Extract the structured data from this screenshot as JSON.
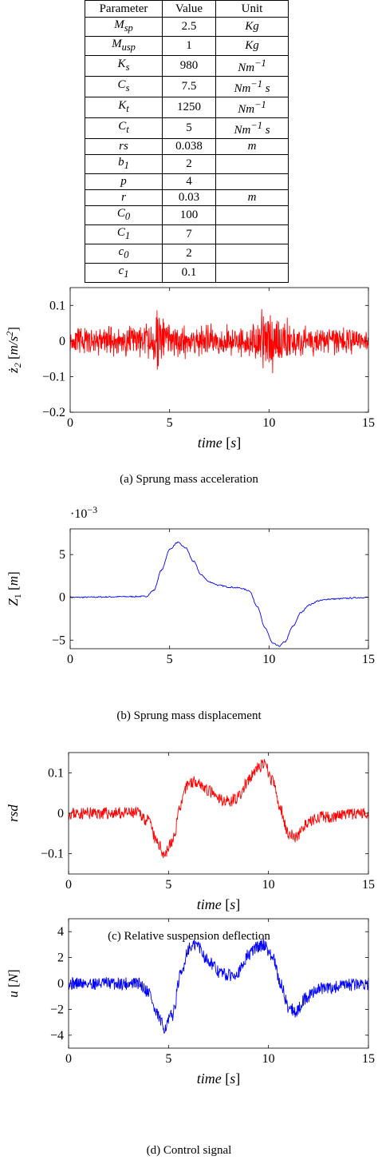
{
  "table": {
    "headers": [
      "Parameter",
      "Value",
      "Unit"
    ],
    "rows": [
      {
        "p": "M_sp",
        "v": "2.5",
        "u": "Kg"
      },
      {
        "p": "M_usp",
        "v": "1",
        "u": "Kg"
      },
      {
        "p": "K_s",
        "v": "980",
        "u": "Nm^-1"
      },
      {
        "p": "C_s",
        "v": "7.5",
        "u": "Nm^-1 s"
      },
      {
        "p": "K_t",
        "v": "1250",
        "u": "Nm^-1"
      },
      {
        "p": "C_t",
        "v": "5",
        "u": "Nm^-1 s"
      },
      {
        "p": "rs",
        "v": "0.038",
        "u": "m"
      },
      {
        "p": "b_1",
        "v": "2",
        "u": ""
      },
      {
        "p": "p",
        "v": "4",
        "u": ""
      },
      {
        "p": "r",
        "v": "0.03",
        "u": "m"
      },
      {
        "p": "C_0",
        "v": "100",
        "u": ""
      },
      {
        "p": "C_1",
        "v": "7",
        "u": ""
      },
      {
        "p": "c_0",
        "v": "2",
        "u": ""
      },
      {
        "p": "c_1",
        "v": "0.1",
        "u": ""
      }
    ]
  },
  "chart_data": [
    {
      "type": "line",
      "caption": "(a) Sprung mass acceleration",
      "xlabel": "time [s]",
      "ylabel": "ż2 [m/s^2]",
      "xlim": [
        0,
        15
      ],
      "ylim": [
        -0.2,
        0.15
      ],
      "xticks": [
        0,
        5,
        10,
        15
      ],
      "yticks": [
        -0.2,
        -0.1,
        0,
        0.1
      ],
      "ytick_labels": [
        "−0.2",
        "−0.1",
        "0",
        "0.1"
      ],
      "exponent": "",
      "color": "#ff0000",
      "series": [
        {
          "envelope_x": [
            0,
            2,
            4,
            4.3,
            4.4,
            4.6,
            5,
            7,
            9,
            9.6,
            10,
            10.5,
            12,
            15
          ],
          "envelope_amp": [
            0.04,
            0.05,
            0.06,
            0.1,
            0.15,
            0.1,
            0.06,
            0.05,
            0.05,
            0.1,
            0.11,
            0.07,
            0.05,
            0.04
          ]
        }
      ]
    },
    {
      "type": "line",
      "caption": "(b) Sprung mass displacement",
      "xlabel": "time [s]",
      "ylabel": "Z1 [m]",
      "xlim": [
        0,
        15
      ],
      "ylim": [
        -6,
        8
      ],
      "xticks": [
        0,
        5,
        10,
        15
      ],
      "yticks": [
        -5,
        0,
        5
      ],
      "ytick_labels": [
        "−5",
        "0",
        "5"
      ],
      "exponent": "·10^-3",
      "color": "#0000ff",
      "series": [
        {
          "x": [
            0,
            3.8,
            4.2,
            4.6,
            5.0,
            5.4,
            5.8,
            6.2,
            6.6,
            7,
            7.5,
            8,
            8.5,
            9,
            9.4,
            9.8,
            10.2,
            10.5,
            10.8,
            11.2,
            11.6,
            12,
            12.5,
            13,
            15
          ],
          "y": [
            0,
            0.1,
            0.8,
            3.2,
            5.6,
            6.4,
            5.8,
            4.2,
            2.6,
            1.8,
            1.4,
            1.2,
            1.1,
            0.8,
            -1.0,
            -3.6,
            -5.4,
            -5.7,
            -5.2,
            -3.4,
            -1.8,
            -0.9,
            -0.4,
            -0.2,
            0
          ]
        }
      ]
    },
    {
      "type": "line",
      "caption": "(c) Relative suspension deflection",
      "xlabel": "time [s]",
      "ylabel": "rsd",
      "xlim": [
        0,
        15
      ],
      "ylim": [
        -0.15,
        0.15
      ],
      "xticks": [
        0,
        5,
        10,
        15
      ],
      "yticks": [
        -0.1,
        0,
        0.1
      ],
      "ytick_labels": [
        "−0.1",
        "0",
        "0.1"
      ],
      "exponent": "",
      "color": "#ff0000",
      "series": [
        {
          "x": [
            0,
            3.5,
            4.0,
            4.4,
            4.8,
            5.2,
            5.6,
            6.0,
            6.4,
            7,
            7.5,
            8,
            8.5,
            9,
            9.4,
            9.8,
            10.2,
            10.6,
            11.0,
            11.4,
            11.8,
            12.5,
            15
          ],
          "y": [
            0,
            0,
            -0.02,
            -0.07,
            -0.1,
            -0.07,
            0.02,
            0.075,
            0.08,
            0.055,
            0.035,
            0.03,
            0.04,
            0.08,
            0.11,
            0.12,
            0.08,
            0.01,
            -0.05,
            -0.06,
            -0.03,
            -0.01,
            0
          ],
          "noise": 0.015
        }
      ]
    },
    {
      "type": "line",
      "caption": "(d) Control signal",
      "xlabel": "time [s]",
      "ylabel": "u [N]",
      "xlim": [
        0,
        15
      ],
      "ylim": [
        -5,
        5
      ],
      "xticks": [
        0,
        5,
        10,
        15
      ],
      "yticks": [
        -4,
        -2,
        0,
        2,
        4
      ],
      "ytick_labels": [
        "−4",
        "−2",
        "0",
        "2",
        "4"
      ],
      "exponent": "",
      "color": "#0000ff",
      "series": [
        {
          "x": [
            0,
            3.5,
            4.0,
            4.4,
            4.8,
            5.2,
            5.6,
            6.0,
            6.4,
            7,
            7.5,
            8,
            8.5,
            9,
            9.4,
            9.8,
            10.2,
            10.6,
            11.0,
            11.4,
            11.8,
            12.5,
            15
          ],
          "y": [
            0,
            0,
            -0.6,
            -2.4,
            -3.4,
            -2.4,
            0.6,
            2.7,
            3.0,
            1.8,
            0.9,
            0.6,
            0.9,
            2.2,
            2.8,
            3.0,
            2.0,
            0.0,
            -1.8,
            -2.2,
            -1.2,
            -0.4,
            0
          ],
          "noise": 0.5
        }
      ]
    }
  ]
}
